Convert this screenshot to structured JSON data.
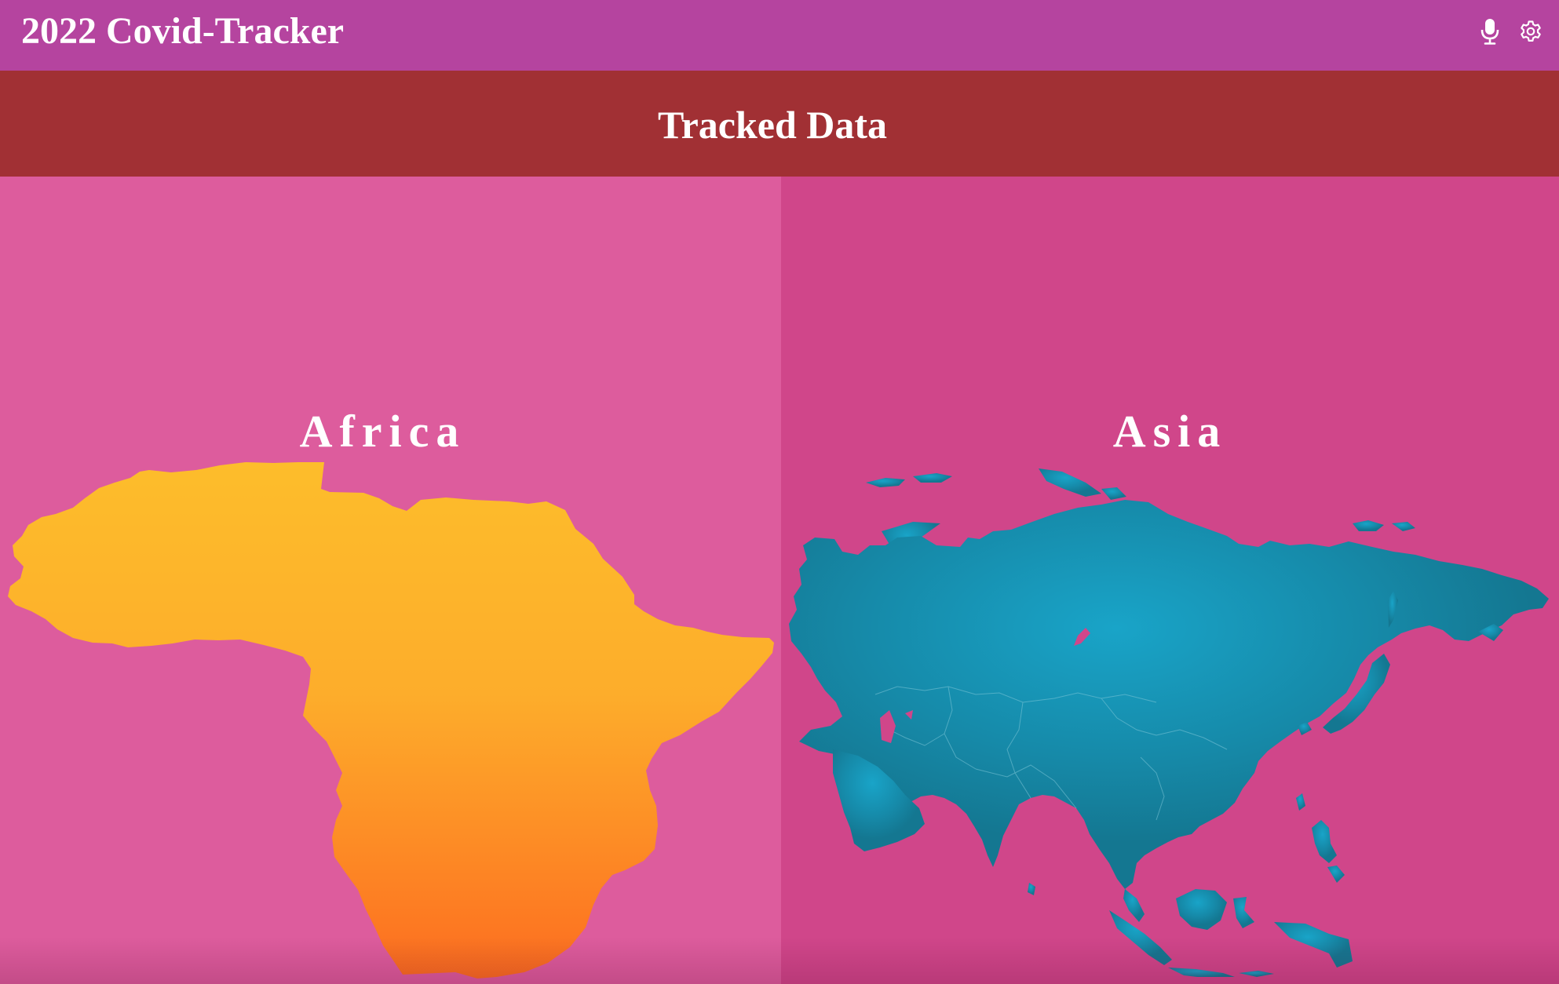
{
  "header": {
    "title": "2022 Covid-Tracker",
    "icons": [
      "microphone-icon",
      "gear-icon"
    ]
  },
  "section": {
    "title": "Tracked Data"
  },
  "panels": [
    {
      "name": "Africa",
      "map_color_top": "#fdbd2b",
      "map_color_bottom": "#fd6f20"
    },
    {
      "name": "Asia",
      "map_color_center": "#19a3c6",
      "map_color_edge": "#147791"
    }
  ],
  "colors": {
    "topbar": "#b5449f",
    "section_bar": "#a13034",
    "africa_panel": "#dd5c9d",
    "asia_panel": "#d0468a"
  }
}
